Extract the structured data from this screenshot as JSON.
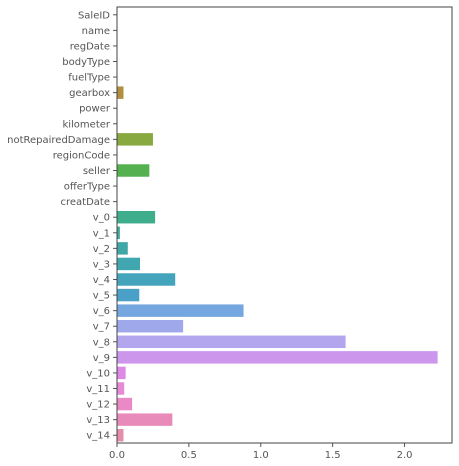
{
  "chart_data": {
    "type": "bar",
    "orientation": "horizontal",
    "title": "",
    "xlabel": "",
    "ylabel": "",
    "categories": [
      "SaleID",
      "name",
      "regDate",
      "bodyType",
      "fuelType",
      "gearbox",
      "power",
      "kilometer",
      "notRepairedDamage",
      "regionCode",
      "seller",
      "offerType",
      "creatDate",
      "v_0",
      "v_1",
      "v_2",
      "v_3",
      "v_4",
      "v_5",
      "v_6",
      "v_7",
      "v_8",
      "v_9",
      "v_10",
      "v_11",
      "v_12",
      "v_13",
      "v_14"
    ],
    "values": [
      0,
      0,
      0,
      0,
      0,
      0.045,
      0,
      0,
      0.25,
      0,
      0.225,
      0,
      0,
      0.265,
      0.02,
      0.075,
      0.16,
      0.405,
      0.155,
      0.88,
      0.46,
      1.59,
      2.23,
      0.06,
      0.05,
      0.105,
      0.385,
      0.045
    ],
    "colors": [
      "#d8766d",
      "#d6796a",
      "#d27e5f",
      "#c9864f",
      "#bf8d43",
      "#b18f3f",
      "#a59a3e",
      "#97a03f",
      "#88a840",
      "#73ad45",
      "#55b04f",
      "#43ae62",
      "#3cad73",
      "#3ead8c",
      "#3eab9c",
      "#3fa8a6",
      "#40a7b0",
      "#43a4bb",
      "#4aa0c6",
      "#74a6e0",
      "#9ea8eb",
      "#b4a6ee",
      "#cc96ec",
      "#de89e5",
      "#e68ad7",
      "#ea89c6",
      "#e88bba",
      "#e68cac"
    ],
    "xlim": [
      0,
      2.33
    ],
    "xticks": [
      0.0,
      0.5,
      1.0,
      1.5,
      2.0
    ],
    "xtick_labels": [
      "0.0",
      "0.5",
      "1.0",
      "1.5",
      "2.0"
    ],
    "grid": false,
    "legend": "none"
  }
}
